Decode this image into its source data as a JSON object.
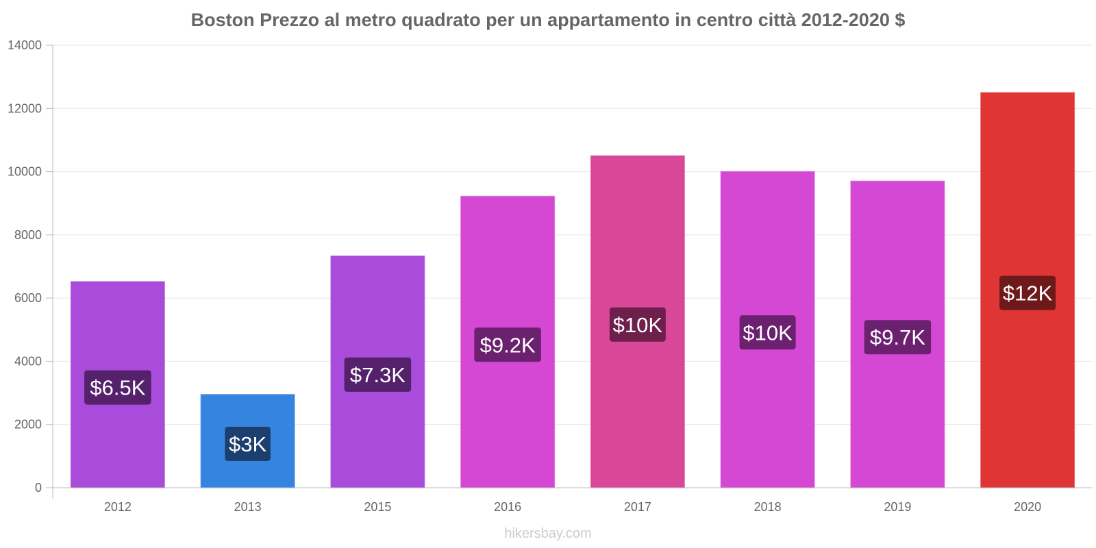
{
  "chart_data": {
    "type": "bar",
    "title": "Boston Prezzo al metro quadrato per un appartamento in centro città 2012-2020 $",
    "categories": [
      "2012",
      "2013",
      "2015",
      "2016",
      "2017",
      "2018",
      "2019",
      "2020"
    ],
    "values": [
      6520,
      2950,
      7330,
      9220,
      10500,
      10000,
      9700,
      12500
    ],
    "data_labels": [
      "$6.5K",
      "$3K",
      "$7.3K",
      "$9.2K",
      "$10K",
      "$10K",
      "$9.7K",
      "$12K"
    ],
    "bar_colors": [
      "#a94bdb",
      "#3584e0",
      "#a94bdb",
      "#d548d4",
      "#d94799",
      "#d548d4",
      "#d548d4",
      "#e03535"
    ],
    "label_bg_colors": [
      "#55216b",
      "#1d3f6e",
      "#55216b",
      "#6b2170",
      "#6e1f4c",
      "#6b2170",
      "#6b2170",
      "#6e1a1a"
    ],
    "yticks": [
      0,
      2000,
      4000,
      6000,
      8000,
      10000,
      12000,
      14000
    ],
    "ylim": [
      0,
      14000
    ],
    "xlabel": "",
    "ylabel": "",
    "grid": true
  },
  "watermark": "hikersbay.com"
}
